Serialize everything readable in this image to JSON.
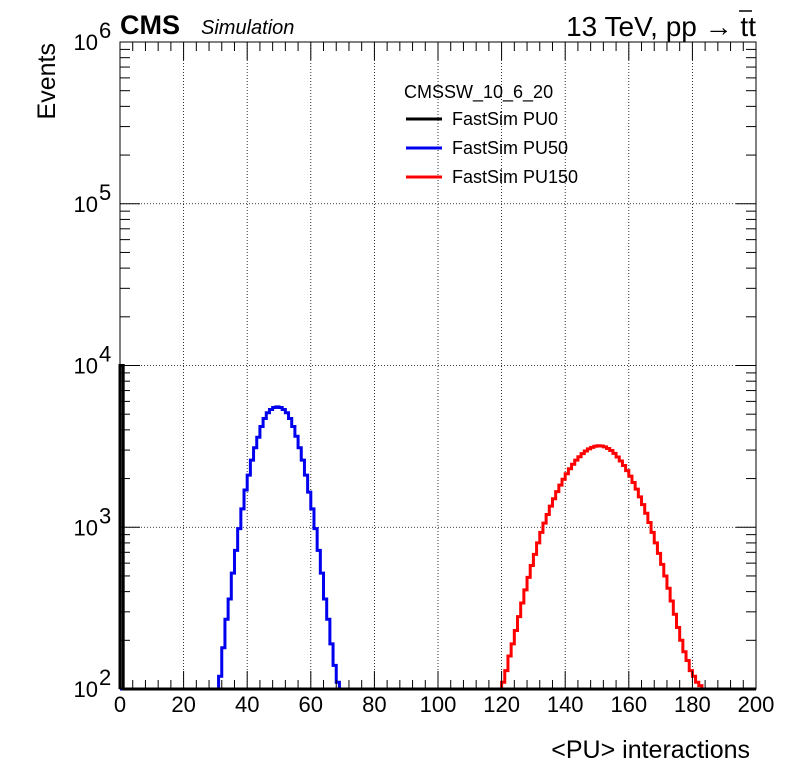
{
  "header": {
    "experiment": "CMS",
    "tag": "Simulation",
    "energy_prefix": "13 TeV, pp → t",
    "energy_suffix": "t"
  },
  "chart_data": {
    "type": "line",
    "xlabel": "<PU> interactions",
    "ylabel": "Events",
    "xlim": [
      0,
      200
    ],
    "ylim": [
      100,
      1000000
    ],
    "yscale": "log",
    "grid": true,
    "x_ticks": [
      {
        "value": 0,
        "label": "0"
      },
      {
        "value": 20,
        "label": "20"
      },
      {
        "value": 40,
        "label": "40"
      },
      {
        "value": 60,
        "label": "60"
      },
      {
        "value": 80,
        "label": "80"
      },
      {
        "value": 100,
        "label": "100"
      },
      {
        "value": 120,
        "label": "120"
      },
      {
        "value": 140,
        "label": "140"
      },
      {
        "value": 160,
        "label": "160"
      },
      {
        "value": 180,
        "label": "180"
      },
      {
        "value": 200,
        "label": "200"
      }
    ],
    "y_ticks": [
      {
        "value": 100,
        "base": "10",
        "exp": "2"
      },
      {
        "value": 1000,
        "base": "10",
        "exp": "3"
      },
      {
        "value": 10000,
        "base": "10",
        "exp": "4"
      },
      {
        "value": 100000,
        "base": "10",
        "exp": "5"
      },
      {
        "value": 1000000,
        "base": "10",
        "exp": "6"
      }
    ],
    "legend": {
      "position": "top-center",
      "header": "CMSSW_10_6_20",
      "entries": [
        {
          "name": "FastSim PU0",
          "color": "#000000"
        },
        {
          "name": "FastSim PU50",
          "color": "#0000ee"
        },
        {
          "name": "FastSim PU150",
          "color": "#ff0000"
        }
      ]
    },
    "series": [
      {
        "name": "FastSim PU0",
        "color": "#000000",
        "bin_width": 1,
        "x": [
          0
        ],
        "values": [
          10000
        ]
      },
      {
        "name": "FastSim PU50",
        "color": "#0000ee",
        "bin_width": 1,
        "x": [
          30,
          31,
          32,
          33,
          34,
          35,
          36,
          37,
          38,
          39,
          40,
          41,
          42,
          43,
          44,
          45,
          46,
          47,
          48,
          49,
          50,
          51,
          52,
          53,
          54,
          55,
          56,
          57,
          58,
          59,
          60,
          61,
          62,
          63,
          64,
          65,
          66,
          67,
          68,
          69,
          70
        ],
        "values": [
          100,
          120,
          180,
          270,
          360,
          520,
          720,
          980,
          1300,
          1700,
          2100,
          2600,
          3100,
          3600,
          4200,
          4700,
          5100,
          5350,
          5500,
          5550,
          5500,
          5350,
          5100,
          4700,
          4200,
          3650,
          3100,
          2600,
          2100,
          1650,
          1300,
          980,
          720,
          520,
          360,
          270,
          190,
          140,
          110,
          100,
          100
        ]
      },
      {
        "name": "FastSim PU150",
        "color": "#ff0000",
        "bin_width": 1,
        "x": [
          119,
          120,
          121,
          122,
          123,
          124,
          125,
          126,
          127,
          128,
          129,
          130,
          131,
          132,
          133,
          134,
          135,
          136,
          137,
          138,
          139,
          140,
          141,
          142,
          143,
          144,
          145,
          146,
          147,
          148,
          149,
          150,
          151,
          152,
          153,
          154,
          155,
          156,
          157,
          158,
          159,
          160,
          161,
          162,
          163,
          164,
          165,
          166,
          167,
          168,
          169,
          170,
          171,
          172,
          173,
          174,
          175,
          176,
          177,
          178,
          179,
          180,
          181,
          182,
          183
        ],
        "values": [
          100,
          110,
          130,
          160,
          190,
          230,
          280,
          340,
          410,
          490,
          580,
          680,
          800,
          930,
          1060,
          1200,
          1350,
          1500,
          1660,
          1820,
          1980,
          2140,
          2300,
          2450,
          2600,
          2730,
          2850,
          2960,
          3050,
          3120,
          3170,
          3190,
          3180,
          3140,
          3070,
          2980,
          2860,
          2720,
          2570,
          2410,
          2240,
          2070,
          1890,
          1720,
          1540,
          1380,
          1220,
          1070,
          930,
          800,
          690,
          590,
          500,
          420,
          350,
          290,
          240,
          200,
          170,
          150,
          130,
          120,
          110,
          105,
          100
        ]
      }
    ]
  }
}
